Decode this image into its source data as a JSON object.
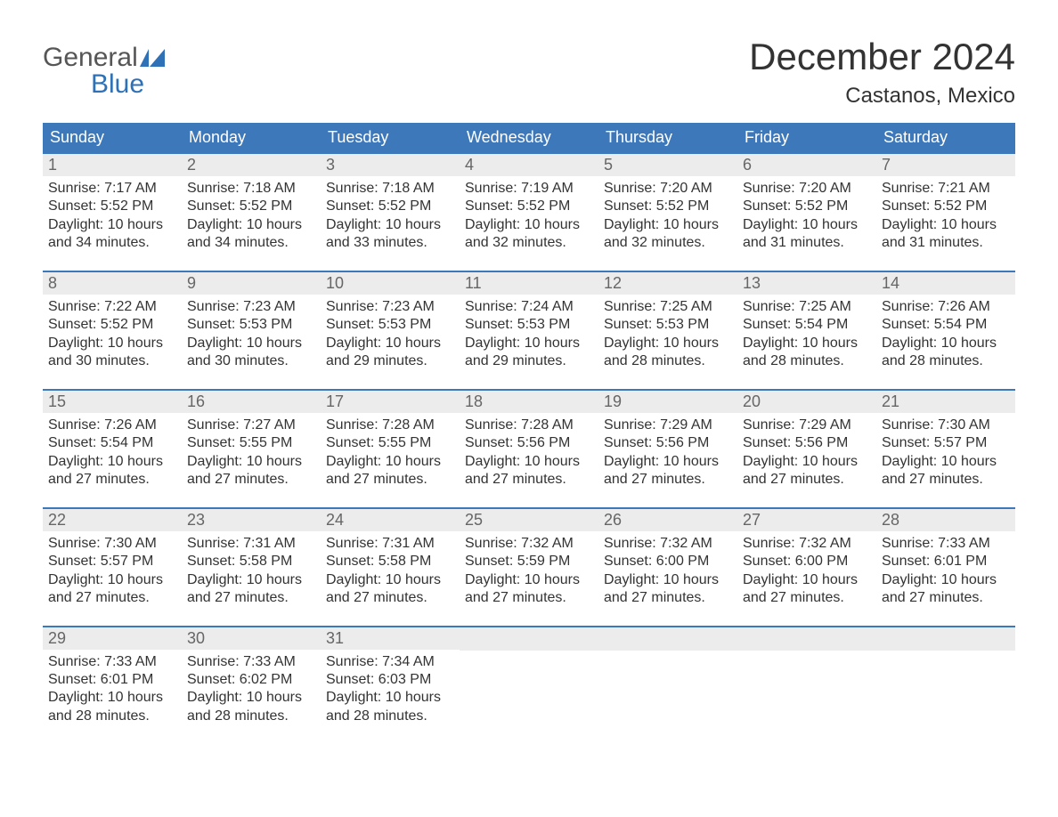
{
  "brand": {
    "line1": "General",
    "line2": "Blue",
    "accent": "#2f71b6",
    "gray": "#565656"
  },
  "title": "December 2024",
  "location": "Castanos, Mexico",
  "colors": {
    "header_bg": "#3d78bb",
    "header_text": "#ffffff",
    "daynum_bg": "#ececec",
    "daynum_text": "#666666",
    "body_text": "#333333",
    "rule": "#3d78bb",
    "page_bg": "#ffffff"
  },
  "typography": {
    "title_fontsize": 42,
    "location_fontsize": 24,
    "header_fontsize": 18,
    "body_fontsize": 16
  },
  "days_of_week": [
    "Sunday",
    "Monday",
    "Tuesday",
    "Wednesday",
    "Thursday",
    "Friday",
    "Saturday"
  ],
  "weeks": [
    [
      {
        "n": "1",
        "sunrise": "Sunrise: 7:17 AM",
        "sunset": "Sunset: 5:52 PM",
        "d1": "Daylight: 10 hours",
        "d2": "and 34 minutes."
      },
      {
        "n": "2",
        "sunrise": "Sunrise: 7:18 AM",
        "sunset": "Sunset: 5:52 PM",
        "d1": "Daylight: 10 hours",
        "d2": "and 34 minutes."
      },
      {
        "n": "3",
        "sunrise": "Sunrise: 7:18 AM",
        "sunset": "Sunset: 5:52 PM",
        "d1": "Daylight: 10 hours",
        "d2": "and 33 minutes."
      },
      {
        "n": "4",
        "sunrise": "Sunrise: 7:19 AM",
        "sunset": "Sunset: 5:52 PM",
        "d1": "Daylight: 10 hours",
        "d2": "and 32 minutes."
      },
      {
        "n": "5",
        "sunrise": "Sunrise: 7:20 AM",
        "sunset": "Sunset: 5:52 PM",
        "d1": "Daylight: 10 hours",
        "d2": "and 32 minutes."
      },
      {
        "n": "6",
        "sunrise": "Sunrise: 7:20 AM",
        "sunset": "Sunset: 5:52 PM",
        "d1": "Daylight: 10 hours",
        "d2": "and 31 minutes."
      },
      {
        "n": "7",
        "sunrise": "Sunrise: 7:21 AM",
        "sunset": "Sunset: 5:52 PM",
        "d1": "Daylight: 10 hours",
        "d2": "and 31 minutes."
      }
    ],
    [
      {
        "n": "8",
        "sunrise": "Sunrise: 7:22 AM",
        "sunset": "Sunset: 5:52 PM",
        "d1": "Daylight: 10 hours",
        "d2": "and 30 minutes."
      },
      {
        "n": "9",
        "sunrise": "Sunrise: 7:23 AM",
        "sunset": "Sunset: 5:53 PM",
        "d1": "Daylight: 10 hours",
        "d2": "and 30 minutes."
      },
      {
        "n": "10",
        "sunrise": "Sunrise: 7:23 AM",
        "sunset": "Sunset: 5:53 PM",
        "d1": "Daylight: 10 hours",
        "d2": "and 29 minutes."
      },
      {
        "n": "11",
        "sunrise": "Sunrise: 7:24 AM",
        "sunset": "Sunset: 5:53 PM",
        "d1": "Daylight: 10 hours",
        "d2": "and 29 minutes."
      },
      {
        "n": "12",
        "sunrise": "Sunrise: 7:25 AM",
        "sunset": "Sunset: 5:53 PM",
        "d1": "Daylight: 10 hours",
        "d2": "and 28 minutes."
      },
      {
        "n": "13",
        "sunrise": "Sunrise: 7:25 AM",
        "sunset": "Sunset: 5:54 PM",
        "d1": "Daylight: 10 hours",
        "d2": "and 28 minutes."
      },
      {
        "n": "14",
        "sunrise": "Sunrise: 7:26 AM",
        "sunset": "Sunset: 5:54 PM",
        "d1": "Daylight: 10 hours",
        "d2": "and 28 minutes."
      }
    ],
    [
      {
        "n": "15",
        "sunrise": "Sunrise: 7:26 AM",
        "sunset": "Sunset: 5:54 PM",
        "d1": "Daylight: 10 hours",
        "d2": "and 27 minutes."
      },
      {
        "n": "16",
        "sunrise": "Sunrise: 7:27 AM",
        "sunset": "Sunset: 5:55 PM",
        "d1": "Daylight: 10 hours",
        "d2": "and 27 minutes."
      },
      {
        "n": "17",
        "sunrise": "Sunrise: 7:28 AM",
        "sunset": "Sunset: 5:55 PM",
        "d1": "Daylight: 10 hours",
        "d2": "and 27 minutes."
      },
      {
        "n": "18",
        "sunrise": "Sunrise: 7:28 AM",
        "sunset": "Sunset: 5:56 PM",
        "d1": "Daylight: 10 hours",
        "d2": "and 27 minutes."
      },
      {
        "n": "19",
        "sunrise": "Sunrise: 7:29 AM",
        "sunset": "Sunset: 5:56 PM",
        "d1": "Daylight: 10 hours",
        "d2": "and 27 minutes."
      },
      {
        "n": "20",
        "sunrise": "Sunrise: 7:29 AM",
        "sunset": "Sunset: 5:56 PM",
        "d1": "Daylight: 10 hours",
        "d2": "and 27 minutes."
      },
      {
        "n": "21",
        "sunrise": "Sunrise: 7:30 AM",
        "sunset": "Sunset: 5:57 PM",
        "d1": "Daylight: 10 hours",
        "d2": "and 27 minutes."
      }
    ],
    [
      {
        "n": "22",
        "sunrise": "Sunrise: 7:30 AM",
        "sunset": "Sunset: 5:57 PM",
        "d1": "Daylight: 10 hours",
        "d2": "and 27 minutes."
      },
      {
        "n": "23",
        "sunrise": "Sunrise: 7:31 AM",
        "sunset": "Sunset: 5:58 PM",
        "d1": "Daylight: 10 hours",
        "d2": "and 27 minutes."
      },
      {
        "n": "24",
        "sunrise": "Sunrise: 7:31 AM",
        "sunset": "Sunset: 5:58 PM",
        "d1": "Daylight: 10 hours",
        "d2": "and 27 minutes."
      },
      {
        "n": "25",
        "sunrise": "Sunrise: 7:32 AM",
        "sunset": "Sunset: 5:59 PM",
        "d1": "Daylight: 10 hours",
        "d2": "and 27 minutes."
      },
      {
        "n": "26",
        "sunrise": "Sunrise: 7:32 AM",
        "sunset": "Sunset: 6:00 PM",
        "d1": "Daylight: 10 hours",
        "d2": "and 27 minutes."
      },
      {
        "n": "27",
        "sunrise": "Sunrise: 7:32 AM",
        "sunset": "Sunset: 6:00 PM",
        "d1": "Daylight: 10 hours",
        "d2": "and 27 minutes."
      },
      {
        "n": "28",
        "sunrise": "Sunrise: 7:33 AM",
        "sunset": "Sunset: 6:01 PM",
        "d1": "Daylight: 10 hours",
        "d2": "and 27 minutes."
      }
    ],
    [
      {
        "n": "29",
        "sunrise": "Sunrise: 7:33 AM",
        "sunset": "Sunset: 6:01 PM",
        "d1": "Daylight: 10 hours",
        "d2": "and 28 minutes."
      },
      {
        "n": "30",
        "sunrise": "Sunrise: 7:33 AM",
        "sunset": "Sunset: 6:02 PM",
        "d1": "Daylight: 10 hours",
        "d2": "and 28 minutes."
      },
      {
        "n": "31",
        "sunrise": "Sunrise: 7:34 AM",
        "sunset": "Sunset: 6:03 PM",
        "d1": "Daylight: 10 hours",
        "d2": "and 28 minutes."
      },
      null,
      null,
      null,
      null
    ]
  ]
}
